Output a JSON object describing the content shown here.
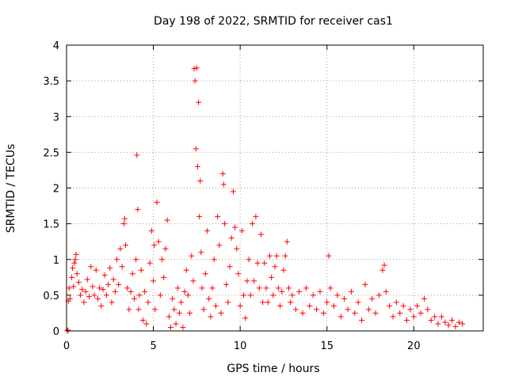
{
  "chart_data": {
    "type": "scatter",
    "title": "Day 198 of 2022, SRMTID for receiver cas1",
    "xlabel": "GPS time / hours",
    "ylabel": "SRMTID / TECUs",
    "xlim": [
      0,
      24
    ],
    "ylim": [
      0,
      4
    ],
    "xticks": [
      0,
      5,
      10,
      15,
      20
    ],
    "yticks": [
      0,
      0.5,
      1,
      1.5,
      2,
      2.5,
      3,
      3.5,
      4
    ],
    "xtick_labels": [
      "0",
      "5",
      "10",
      "15",
      "20"
    ],
    "ytick_labels": [
      "0",
      "0.5",
      "1",
      "1.5",
      "2",
      "2.5",
      "3",
      "3.5",
      "4"
    ],
    "grid": true,
    "marker": "+",
    "color": "#ff0000",
    "series": [
      {
        "name": "SRMTID",
        "points": [
          [
            0.05,
            0.0
          ],
          [
            0.08,
            0.01
          ],
          [
            0.1,
            0.42
          ],
          [
            0.15,
            0.6
          ],
          [
            0.2,
            0.45
          ],
          [
            0.3,
            0.75
          ],
          [
            0.35,
            0.88
          ],
          [
            0.4,
            0.62
          ],
          [
            0.45,
            0.95
          ],
          [
            0.5,
            1.0
          ],
          [
            0.55,
            1.07
          ],
          [
            0.6,
            0.8
          ],
          [
            0.7,
            0.68
          ],
          [
            0.8,
            0.5
          ],
          [
            0.9,
            0.58
          ],
          [
            1.0,
            0.4
          ],
          [
            1.1,
            0.55
          ],
          [
            1.2,
            0.72
          ],
          [
            1.3,
            0.48
          ],
          [
            1.4,
            0.9
          ],
          [
            1.5,
            0.62
          ],
          [
            1.6,
            0.5
          ],
          [
            1.7,
            0.85
          ],
          [
            1.8,
            0.45
          ],
          [
            1.9,
            0.6
          ],
          [
            2.0,
            0.35
          ],
          [
            2.1,
            0.58
          ],
          [
            2.2,
            0.78
          ],
          [
            2.3,
            0.5
          ],
          [
            2.4,
            0.65
          ],
          [
            2.5,
            0.88
          ],
          [
            2.6,
            0.4
          ],
          [
            2.7,
            0.72
          ],
          [
            2.8,
            0.55
          ],
          [
            2.9,
            1.0
          ],
          [
            3.0,
            0.65
          ],
          [
            3.1,
            1.15
          ],
          [
            3.2,
            0.9
          ],
          [
            3.3,
            1.5
          ],
          [
            3.35,
            1.57
          ],
          [
            3.4,
            1.2
          ],
          [
            3.5,
            0.6
          ],
          [
            3.6,
            0.3
          ],
          [
            3.7,
            0.55
          ],
          [
            3.8,
            0.8
          ],
          [
            3.9,
            0.45
          ],
          [
            4.0,
            1.0
          ],
          [
            4.05,
            2.46
          ],
          [
            4.1,
            1.7
          ],
          [
            4.15,
            0.3
          ],
          [
            4.2,
            0.5
          ],
          [
            4.3,
            0.85
          ],
          [
            4.4,
            0.15
          ],
          [
            4.5,
            0.55
          ],
          [
            4.6,
            0.1
          ],
          [
            4.7,
            0.4
          ],
          [
            4.8,
            0.95
          ],
          [
            4.9,
            1.4
          ],
          [
            5.0,
            0.7
          ],
          [
            5.05,
            1.2
          ],
          [
            5.1,
            0.3
          ],
          [
            5.2,
            1.8
          ],
          [
            5.3,
            1.25
          ],
          [
            5.4,
            0.5
          ],
          [
            5.5,
            1.0
          ],
          [
            5.6,
            0.75
          ],
          [
            5.7,
            1.15
          ],
          [
            5.8,
            1.55
          ],
          [
            5.9,
            0.2
          ],
          [
            6.0,
            0.05
          ],
          [
            6.1,
            0.45
          ],
          [
            6.2,
            0.3
          ],
          [
            6.3,
            0.1
          ],
          [
            6.4,
            0.6
          ],
          [
            6.5,
            0.25
          ],
          [
            6.6,
            0.4
          ],
          [
            6.7,
            0.05
          ],
          [
            6.8,
            0.55
          ],
          [
            6.9,
            0.85
          ],
          [
            7.0,
            0.5
          ],
          [
            7.1,
            0.25
          ],
          [
            7.2,
            1.05
          ],
          [
            7.3,
            0.7
          ],
          [
            7.35,
            3.67
          ],
          [
            7.4,
            3.5
          ],
          [
            7.45,
            2.55
          ],
          [
            7.5,
            3.68
          ],
          [
            7.55,
            2.3
          ],
          [
            7.6,
            3.2
          ],
          [
            7.65,
            1.6
          ],
          [
            7.7,
            2.1
          ],
          [
            7.75,
            1.1
          ],
          [
            7.8,
            0.6
          ],
          [
            7.9,
            0.3
          ],
          [
            8.0,
            0.8
          ],
          [
            8.1,
            1.4
          ],
          [
            8.2,
            0.45
          ],
          [
            8.3,
            0.2
          ],
          [
            8.4,
            0.6
          ],
          [
            8.5,
            1.0
          ],
          [
            8.6,
            0.35
          ],
          [
            8.7,
            1.6
          ],
          [
            8.8,
            1.2
          ],
          [
            8.9,
            0.25
          ],
          [
            9.0,
            2.2
          ],
          [
            9.05,
            2.05
          ],
          [
            9.1,
            1.5
          ],
          [
            9.2,
            0.65
          ],
          [
            9.3,
            0.4
          ],
          [
            9.4,
            0.9
          ],
          [
            9.5,
            1.3
          ],
          [
            9.6,
            1.95
          ],
          [
            9.7,
            1.45
          ],
          [
            9.8,
            1.15
          ],
          [
            9.9,
            0.8
          ],
          [
            10.0,
            0.35
          ],
          [
            10.1,
            1.4
          ],
          [
            10.2,
            0.5
          ],
          [
            10.3,
            0.18
          ],
          [
            10.4,
            0.7
          ],
          [
            10.5,
            1.0
          ],
          [
            10.6,
            0.5
          ],
          [
            10.7,
            1.5
          ],
          [
            10.8,
            0.7
          ],
          [
            10.9,
            1.6
          ],
          [
            11.0,
            0.95
          ],
          [
            11.1,
            0.6
          ],
          [
            11.2,
            1.35
          ],
          [
            11.3,
            0.4
          ],
          [
            11.4,
            0.95
          ],
          [
            11.5,
            0.6
          ],
          [
            11.6,
            0.4
          ],
          [
            11.7,
            1.05
          ],
          [
            11.8,
            0.75
          ],
          [
            11.9,
            0.5
          ],
          [
            12.0,
            0.9
          ],
          [
            12.1,
            1.05
          ],
          [
            12.2,
            0.6
          ],
          [
            12.3,
            0.35
          ],
          [
            12.4,
            0.55
          ],
          [
            12.5,
            0.85
          ],
          [
            12.6,
            1.05
          ],
          [
            12.7,
            1.25
          ],
          [
            12.8,
            0.6
          ],
          [
            12.9,
            0.4
          ],
          [
            13.0,
            0.5
          ],
          [
            13.2,
            0.3
          ],
          [
            13.4,
            0.55
          ],
          [
            13.6,
            0.25
          ],
          [
            13.8,
            0.6
          ],
          [
            14.0,
            0.35
          ],
          [
            14.2,
            0.5
          ],
          [
            14.4,
            0.3
          ],
          [
            14.6,
            0.55
          ],
          [
            14.8,
            0.25
          ],
          [
            15.0,
            0.4
          ],
          [
            15.1,
            1.05
          ],
          [
            15.2,
            0.6
          ],
          [
            15.4,
            0.35
          ],
          [
            15.6,
            0.5
          ],
          [
            15.8,
            0.2
          ],
          [
            16.0,
            0.45
          ],
          [
            16.2,
            0.3
          ],
          [
            16.4,
            0.55
          ],
          [
            16.6,
            0.25
          ],
          [
            16.8,
            0.4
          ],
          [
            17.0,
            0.15
          ],
          [
            17.2,
            0.65
          ],
          [
            17.4,
            0.3
          ],
          [
            17.6,
            0.45
          ],
          [
            17.8,
            0.25
          ],
          [
            18.0,
            0.5
          ],
          [
            18.2,
            0.85
          ],
          [
            18.3,
            0.92
          ],
          [
            18.4,
            0.55
          ],
          [
            18.6,
            0.35
          ],
          [
            18.8,
            0.2
          ],
          [
            19.0,
            0.4
          ],
          [
            19.2,
            0.25
          ],
          [
            19.4,
            0.35
          ],
          [
            19.6,
            0.15
          ],
          [
            19.8,
            0.3
          ],
          [
            20.0,
            0.2
          ],
          [
            20.2,
            0.35
          ],
          [
            20.4,
            0.25
          ],
          [
            20.6,
            0.45
          ],
          [
            20.8,
            0.3
          ],
          [
            21.0,
            0.15
          ],
          [
            21.2,
            0.2
          ],
          [
            21.4,
            0.1
          ],
          [
            21.6,
            0.2
          ],
          [
            21.8,
            0.12
          ],
          [
            22.0,
            0.08
          ],
          [
            22.2,
            0.15
          ],
          [
            22.4,
            0.06
          ],
          [
            22.6,
            0.12
          ],
          [
            22.8,
            0.1
          ]
        ]
      }
    ]
  }
}
